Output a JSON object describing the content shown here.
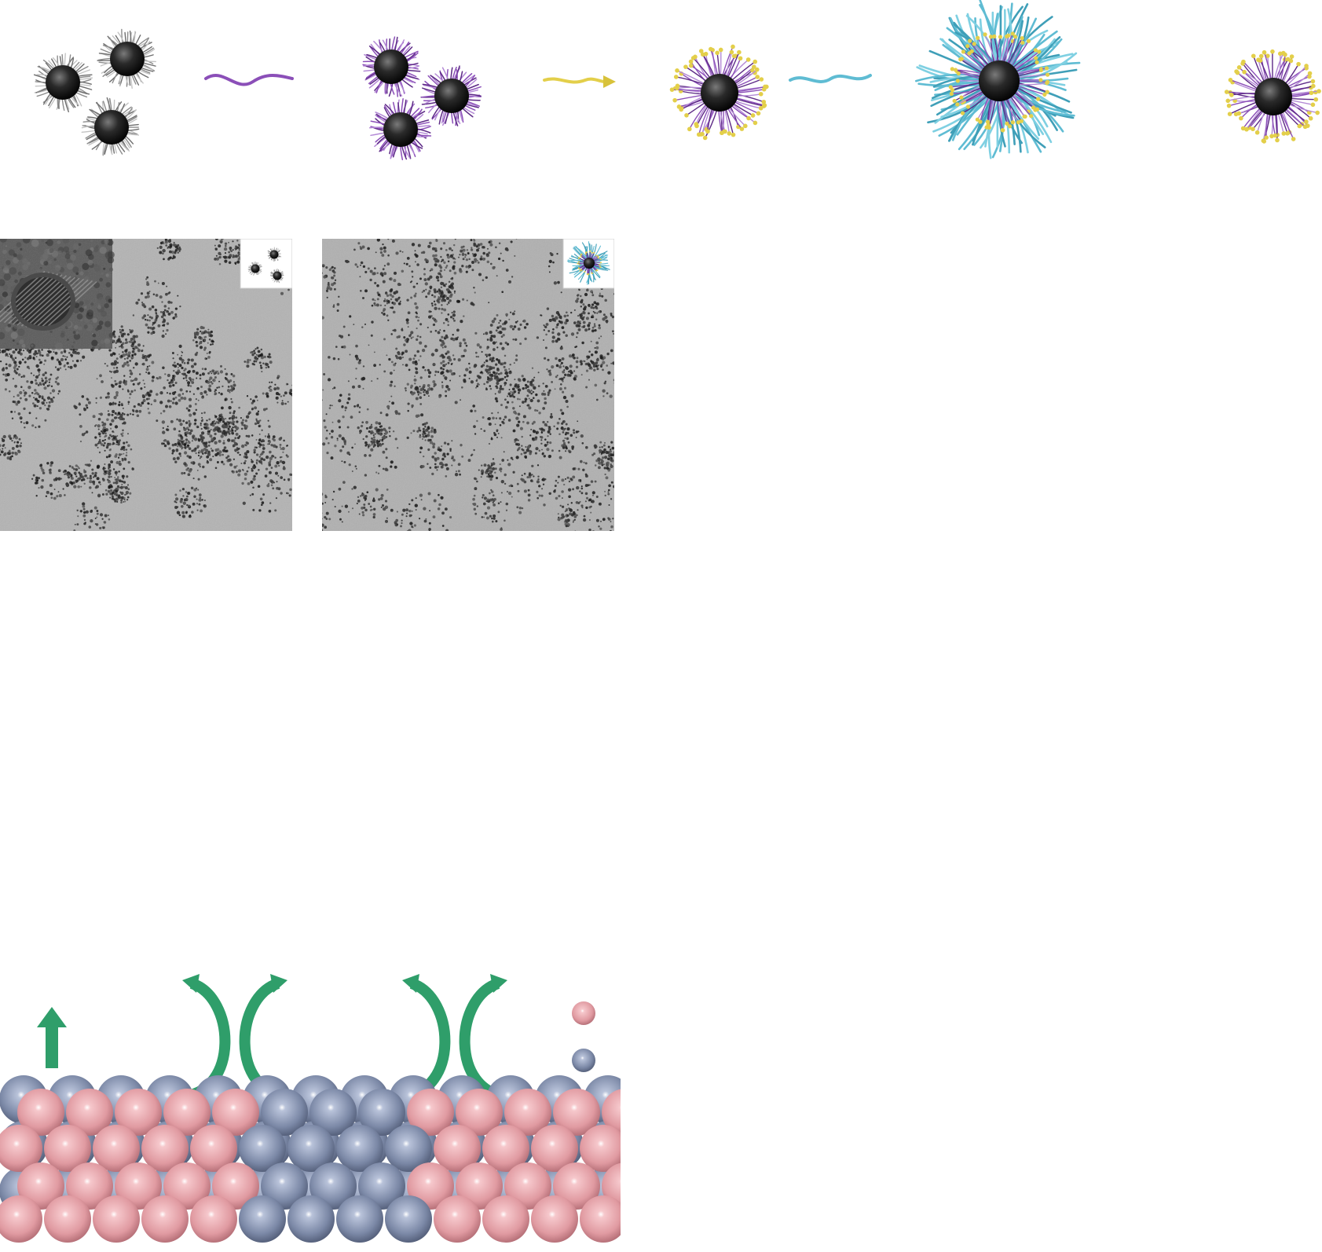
{
  "scheme": {
    "stages": [
      {
        "key": "as-synthesized",
        "ligand": "grey"
      },
      {
        "key": "exchanged",
        "ligand": "purple"
      },
      {
        "key": "zwitterion-capped",
        "ligand": "yellow"
      },
      {
        "key": "polymer-wrapped",
        "ligand": "cyan"
      },
      {
        "key": "final",
        "ligand": "yellow"
      }
    ],
    "reagents": [
      "purple-ligand-chain",
      "yellow-ligand-arrow",
      "cyan-polymer-chain"
    ]
  },
  "micrographs": [
    {
      "key": "tem-left",
      "inset_hrtem": true,
      "inset_scheme": "as-synthesized"
    },
    {
      "key": "tem-right",
      "inset_hrtem": false,
      "inset_scheme": "polymer-wrapped"
    }
  ],
  "atoms": {
    "legend": [
      {
        "key": "pink-atom",
        "color": "#e6a2a8"
      },
      {
        "key": "blue-atom",
        "color": "#7d8aa8"
      }
    ],
    "arrows": [
      "up-arrow",
      "curved-exchange-pair-1",
      "curved-exchange-pair-2"
    ],
    "colors": {
      "arrow": "#2f9e6a",
      "pink": "#e6a2a8",
      "blue": "#7d8aa8"
    }
  },
  "colors": {
    "core": "#1a1a1a",
    "grey_ligand": "#9a9a9a",
    "purple_ligand": "#8b4fb8",
    "yellow_ligand": "#e3cf4a",
    "cyan_ligand": "#5fbcd3",
    "tem_bg": "#b3b3b3"
  }
}
